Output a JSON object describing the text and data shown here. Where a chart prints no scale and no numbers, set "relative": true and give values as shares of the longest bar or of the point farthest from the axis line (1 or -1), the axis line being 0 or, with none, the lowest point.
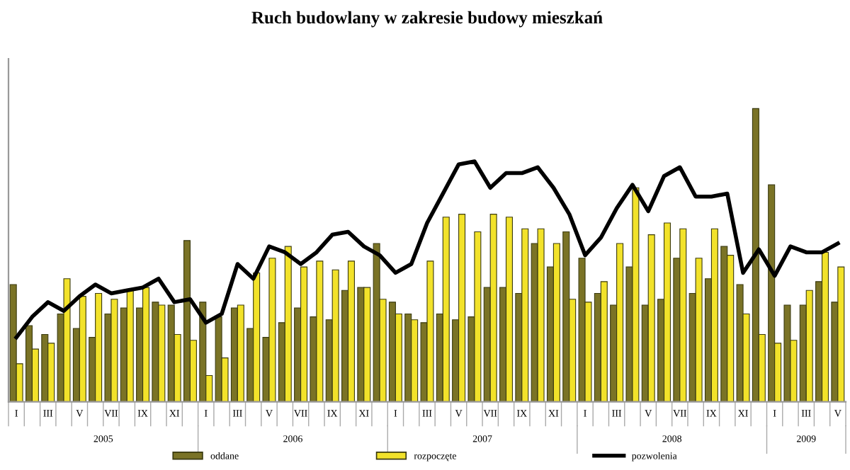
{
  "chart_data": {
    "type": "bar",
    "title": "Ruch budowlany w zakresie budowy mieszkań",
    "relative": true,
    "legend": "bottom",
    "grid": false,
    "categories": [
      "I",
      null,
      "III",
      null,
      "V",
      null,
      "VII",
      null,
      "IX",
      null,
      "XI",
      null,
      "I",
      null,
      "III",
      null,
      "V",
      null,
      "VII",
      null,
      "IX",
      null,
      "XI",
      null,
      "I",
      null,
      "III",
      null,
      "V",
      null,
      "VII",
      null,
      "IX",
      null,
      "XI",
      null,
      "I",
      null,
      "III",
      null,
      "V",
      null,
      "VII",
      null,
      "IX",
      null,
      "XI",
      null,
      "I",
      null,
      "III",
      null,
      "V"
    ],
    "annotations": [
      "2005",
      "2006",
      "2007",
      "2008",
      "2009"
    ],
    "series": [
      {
        "name": "oddane",
        "color": "#7a7326",
        "values": [
          0.4,
          0.26,
          0.23,
          0.3,
          0.25,
          0.22,
          0.3,
          0.32,
          0.32,
          0.34,
          0.33,
          0.55,
          0.34,
          0.29,
          0.32,
          0.25,
          0.22,
          0.27,
          0.32,
          0.29,
          0.28,
          0.38,
          0.39,
          0.54,
          0.34,
          0.3,
          0.27,
          0.3,
          0.28,
          0.29,
          0.39,
          0.39,
          0.37,
          0.54,
          0.46,
          0.58,
          0.49,
          0.37,
          0.33,
          0.46,
          0.33,
          0.35,
          0.49,
          0.37,
          0.42,
          0.53,
          0.4,
          1,
          0.74,
          0.33,
          0.33,
          0.41,
          0.34
        ]
      },
      {
        "name": "rozpoczęte",
        "color": "#f2e22a",
        "values": [
          0.13,
          0.18,
          0.2,
          0.42,
          0.36,
          0.37,
          0.35,
          0.38,
          0.39,
          0.33,
          0.23,
          0.21,
          0.09,
          0.15,
          0.33,
          0.44,
          0.49,
          0.53,
          0.46,
          0.48,
          0.45,
          0.48,
          0.39,
          0.35,
          0.3,
          0.28,
          0.48,
          0.63,
          0.64,
          0.58,
          0.64,
          0.63,
          0.59,
          0.59,
          0.54,
          0.35,
          0.34,
          0.41,
          0.54,
          0.73,
          0.57,
          0.61,
          0.59,
          0.49,
          0.59,
          0.5,
          0.3,
          0.23,
          0.2,
          0.21,
          0.38,
          0.51,
          0.46
        ]
      },
      {
        "name": "pozwolenia",
        "type": "line",
        "color": "#000000",
        "values": [
          0.22,
          0.29,
          0.34,
          0.31,
          0.36,
          0.4,
          0.37,
          0.38,
          0.39,
          0.42,
          0.34,
          0.35,
          0.27,
          0.3,
          0.47,
          0.42,
          0.53,
          0.51,
          0.47,
          0.51,
          0.57,
          0.58,
          0.53,
          0.5,
          0.44,
          0.47,
          0.61,
          0.71,
          0.81,
          0.82,
          0.73,
          0.78,
          0.78,
          0.8,
          0.73,
          0.64,
          0.5,
          0.56,
          0.66,
          0.74,
          0.65,
          0.77,
          0.8,
          0.7,
          0.7,
          0.71,
          0.44,
          0.52,
          0.43,
          0.53,
          0.51,
          0.51,
          0.54
        ]
      }
    ]
  }
}
